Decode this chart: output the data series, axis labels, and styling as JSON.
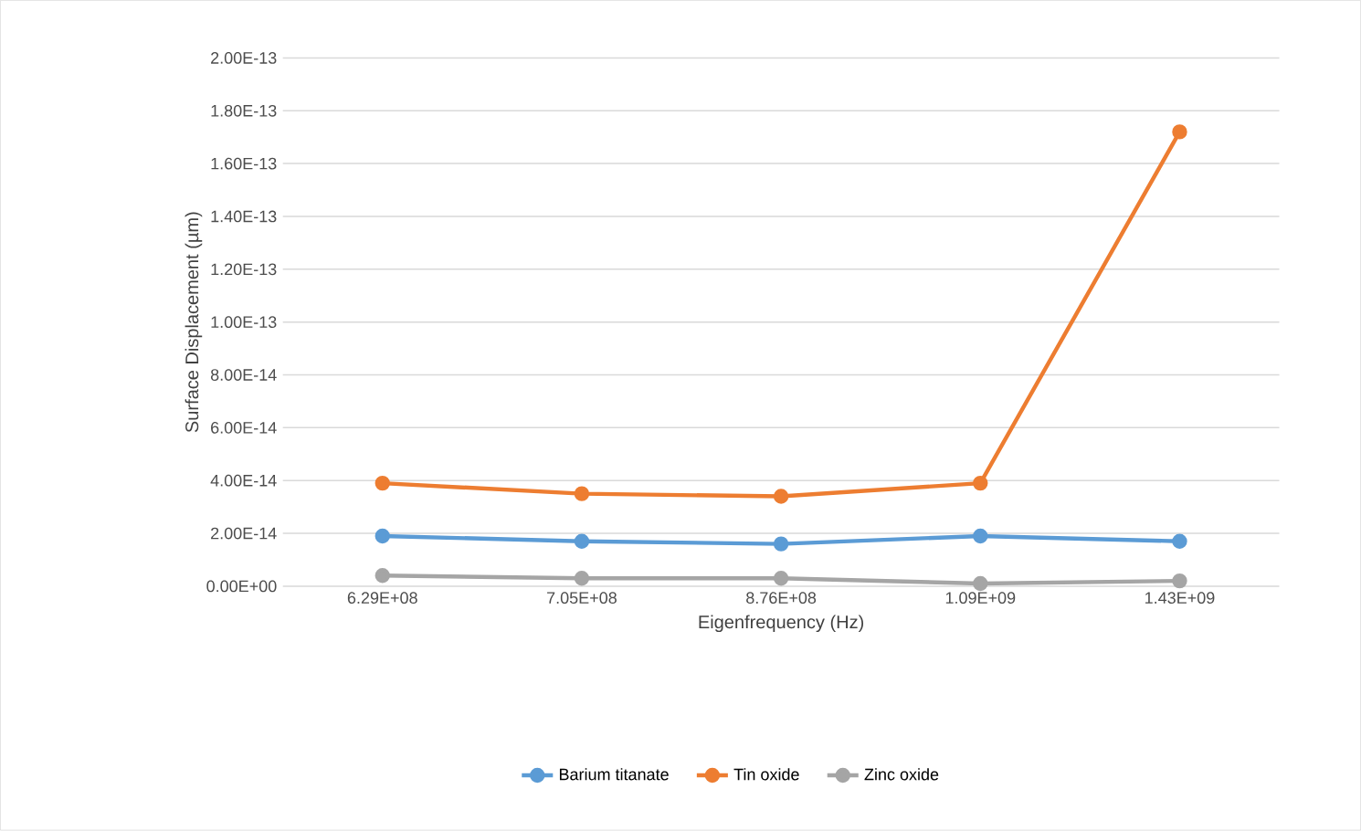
{
  "chart_data": {
    "type": "line",
    "xlabel": "Eigenfrequency (Hz)",
    "ylabel": "Surface Displacement (µm)",
    "categories": [
      "6.29E+08",
      "7.05E+08",
      "8.76E+08",
      "1.09E+09",
      "1.43E+09"
    ],
    "series": [
      {
        "name": "Barium titanate",
        "color": "#5b9bd5",
        "values": [
          1.9e-14,
          1.7e-14,
          1.6e-14,
          1.9e-14,
          1.7e-14
        ]
      },
      {
        "name": "Tin oxide",
        "color": "#ed7d31",
        "values": [
          3.9e-14,
          3.5e-14,
          3.4e-14,
          3.9e-14,
          1.72e-13
        ]
      },
      {
        "name": "Zinc oxide",
        "color": "#a5a5a5",
        "values": [
          4e-15,
          3e-15,
          3e-15,
          1e-15,
          2e-15
        ]
      }
    ],
    "ylim": [
      0,
      2e-13
    ],
    "yticks": [
      {
        "value": 0,
        "label": "0.00E+00"
      },
      {
        "value": 2e-14,
        "label": "2.00E-14"
      },
      {
        "value": 4e-14,
        "label": "4.00E-14"
      },
      {
        "value": 6e-14,
        "label": "6.00E-14"
      },
      {
        "value": 8e-14,
        "label": "8.00E-14"
      },
      {
        "value": 1e-13,
        "label": "1.00E-13"
      },
      {
        "value": 1.2e-13,
        "label": "1.20E-13"
      },
      {
        "value": 1.4e-13,
        "label": "1.40E-13"
      },
      {
        "value": 1.6e-13,
        "label": "1.60E-13"
      },
      {
        "value": 1.8e-13,
        "label": "1.80E-13"
      },
      {
        "value": 2e-13,
        "label": "2.00E-13"
      }
    ],
    "grid": "y",
    "legend": "bottom",
    "marker": "circle",
    "line_style": "solid"
  }
}
